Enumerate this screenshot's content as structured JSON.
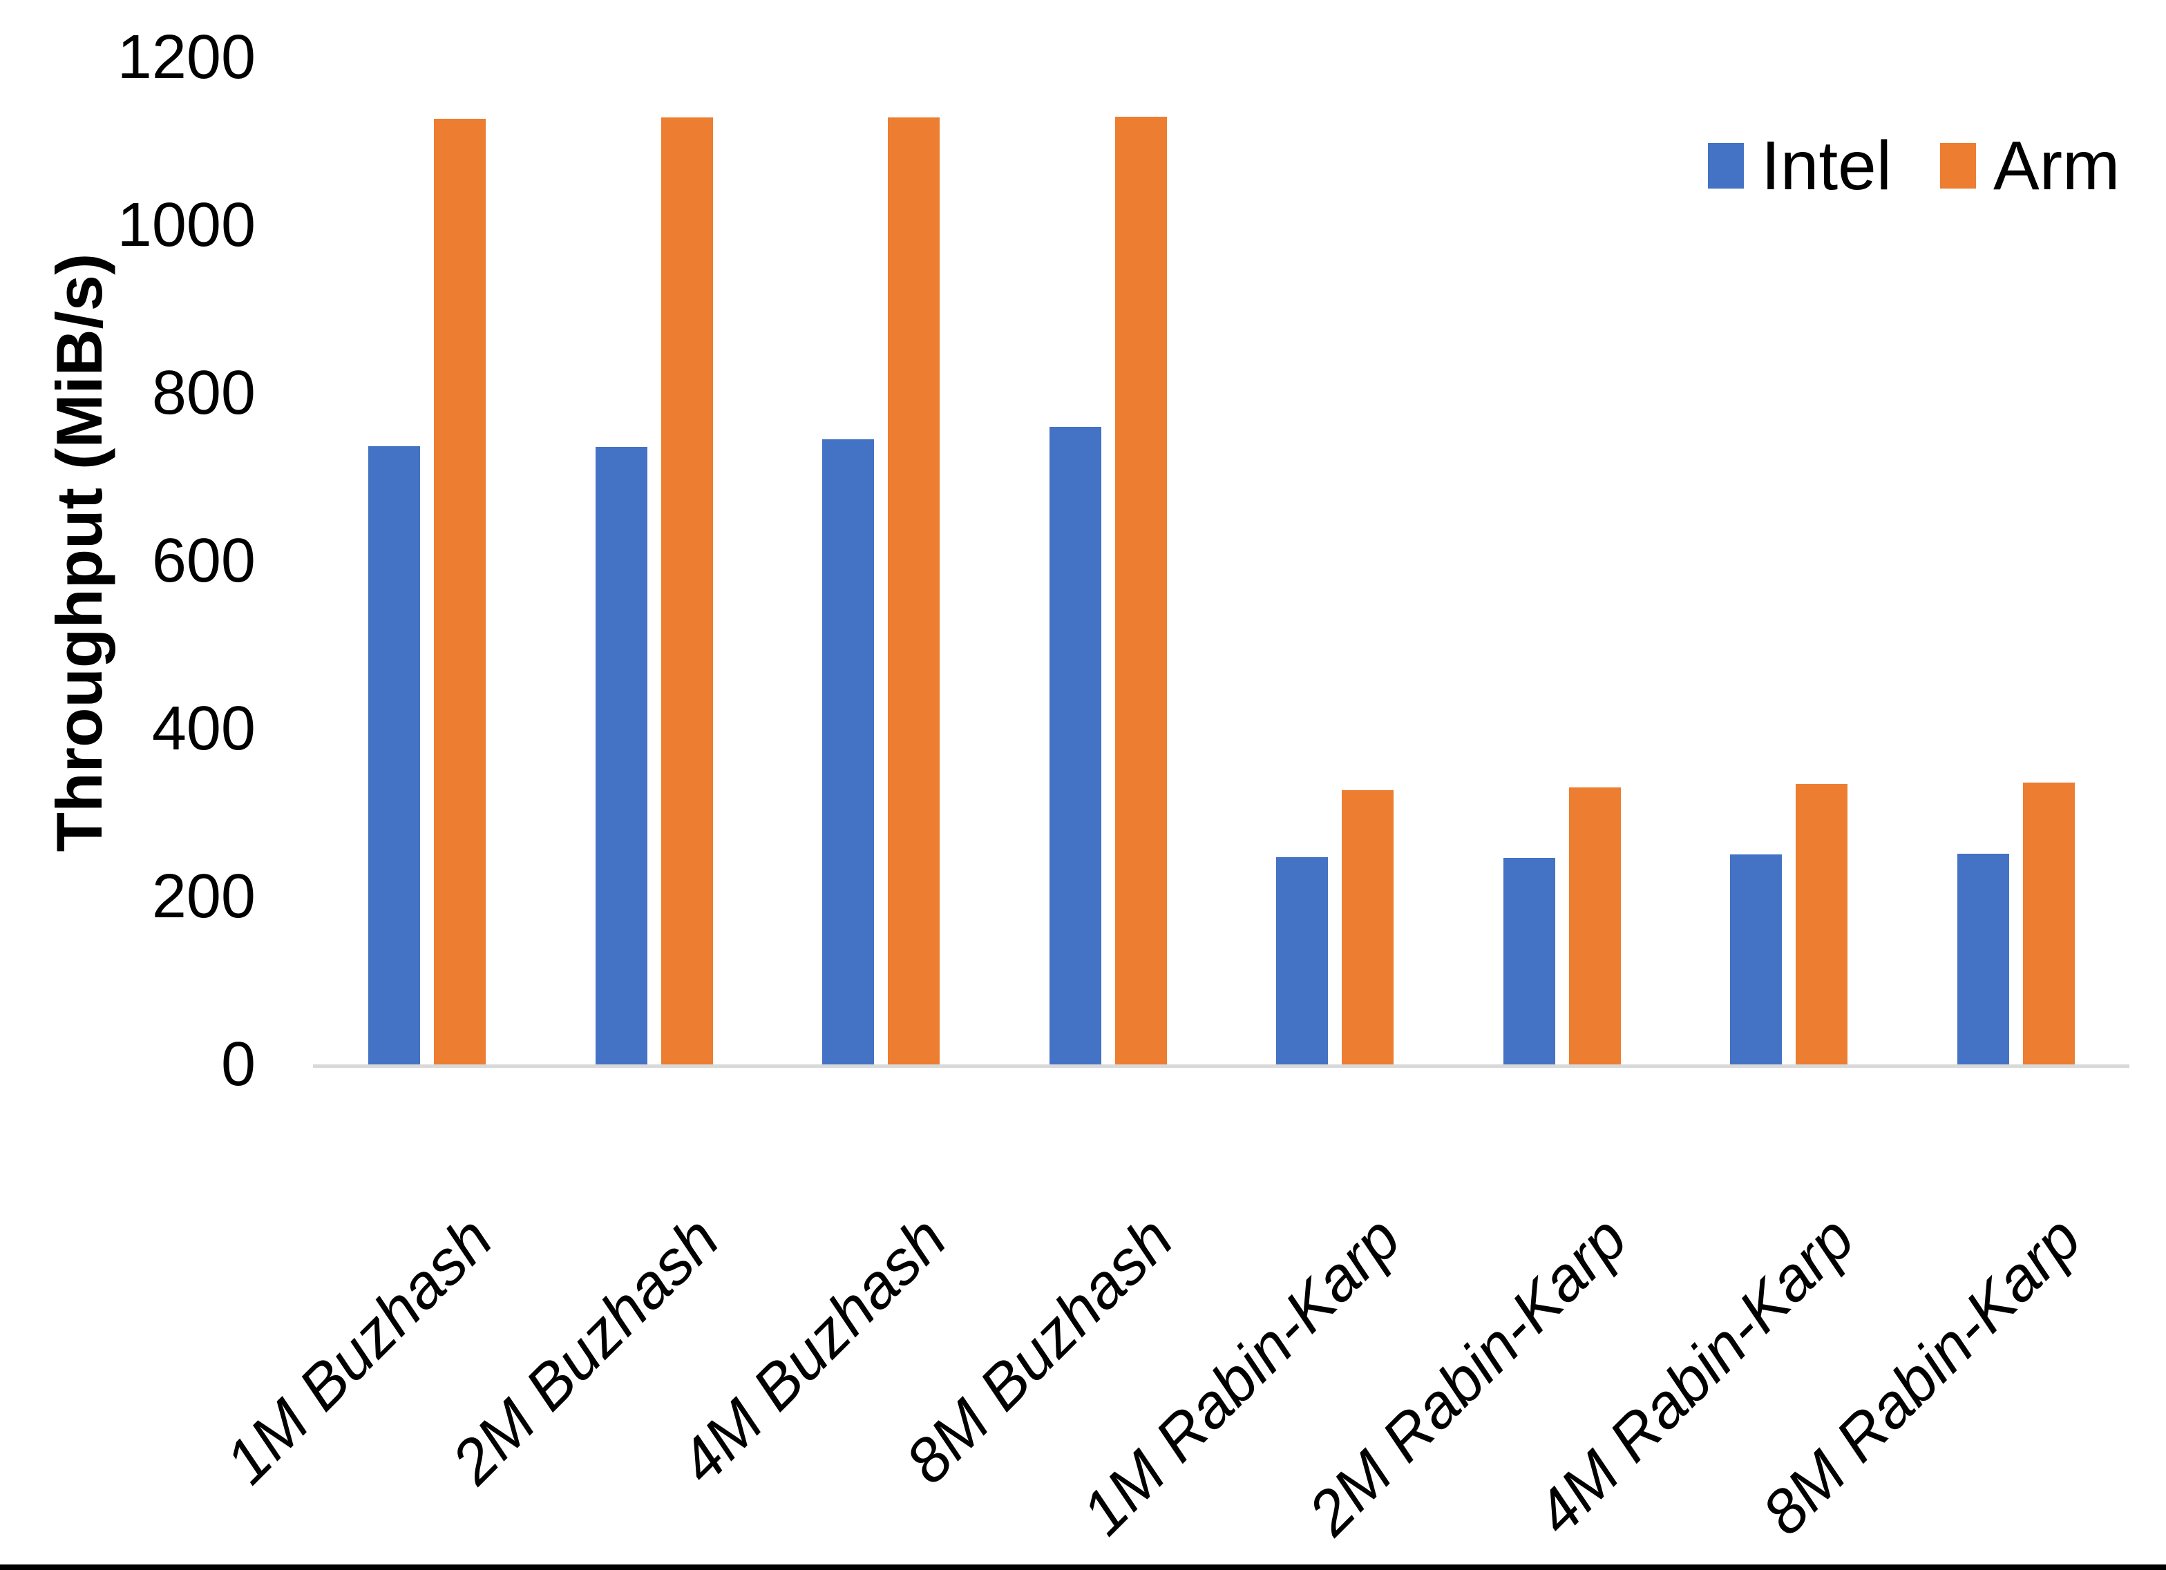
{
  "chart_data": {
    "type": "bar",
    "title": "",
    "xlabel": "",
    "ylabel": "Throughput (MiB/s)",
    "categories": [
      "1M Buzhash",
      "2M Buzhash",
      "4M Buzhash",
      "8M Buzhash",
      "1M Rabin-Karp",
      "2M Rabin-Karp",
      "4M Rabin-Karp",
      "8M Rabin-Karp"
    ],
    "series": [
      {
        "name": "Intel",
        "color": "#4472C4",
        "values": [
          737,
          736,
          745,
          760,
          247,
          246,
          250,
          251
        ]
      },
      {
        "name": "Arm",
        "color": "#ED7D31",
        "values": [
          1127,
          1128,
          1128,
          1129,
          327,
          330,
          334,
          336
        ]
      }
    ],
    "ylim": [
      0,
      1200
    ],
    "yticks": [
      0,
      200,
      400,
      600,
      800,
      1000,
      1200
    ],
    "grid": false,
    "legend_position": "top-right"
  },
  "colors": {
    "axis_line": "#D9D9D9",
    "text": "#000000",
    "background": "#FFFFFF",
    "bottom_border": "#000000"
  }
}
